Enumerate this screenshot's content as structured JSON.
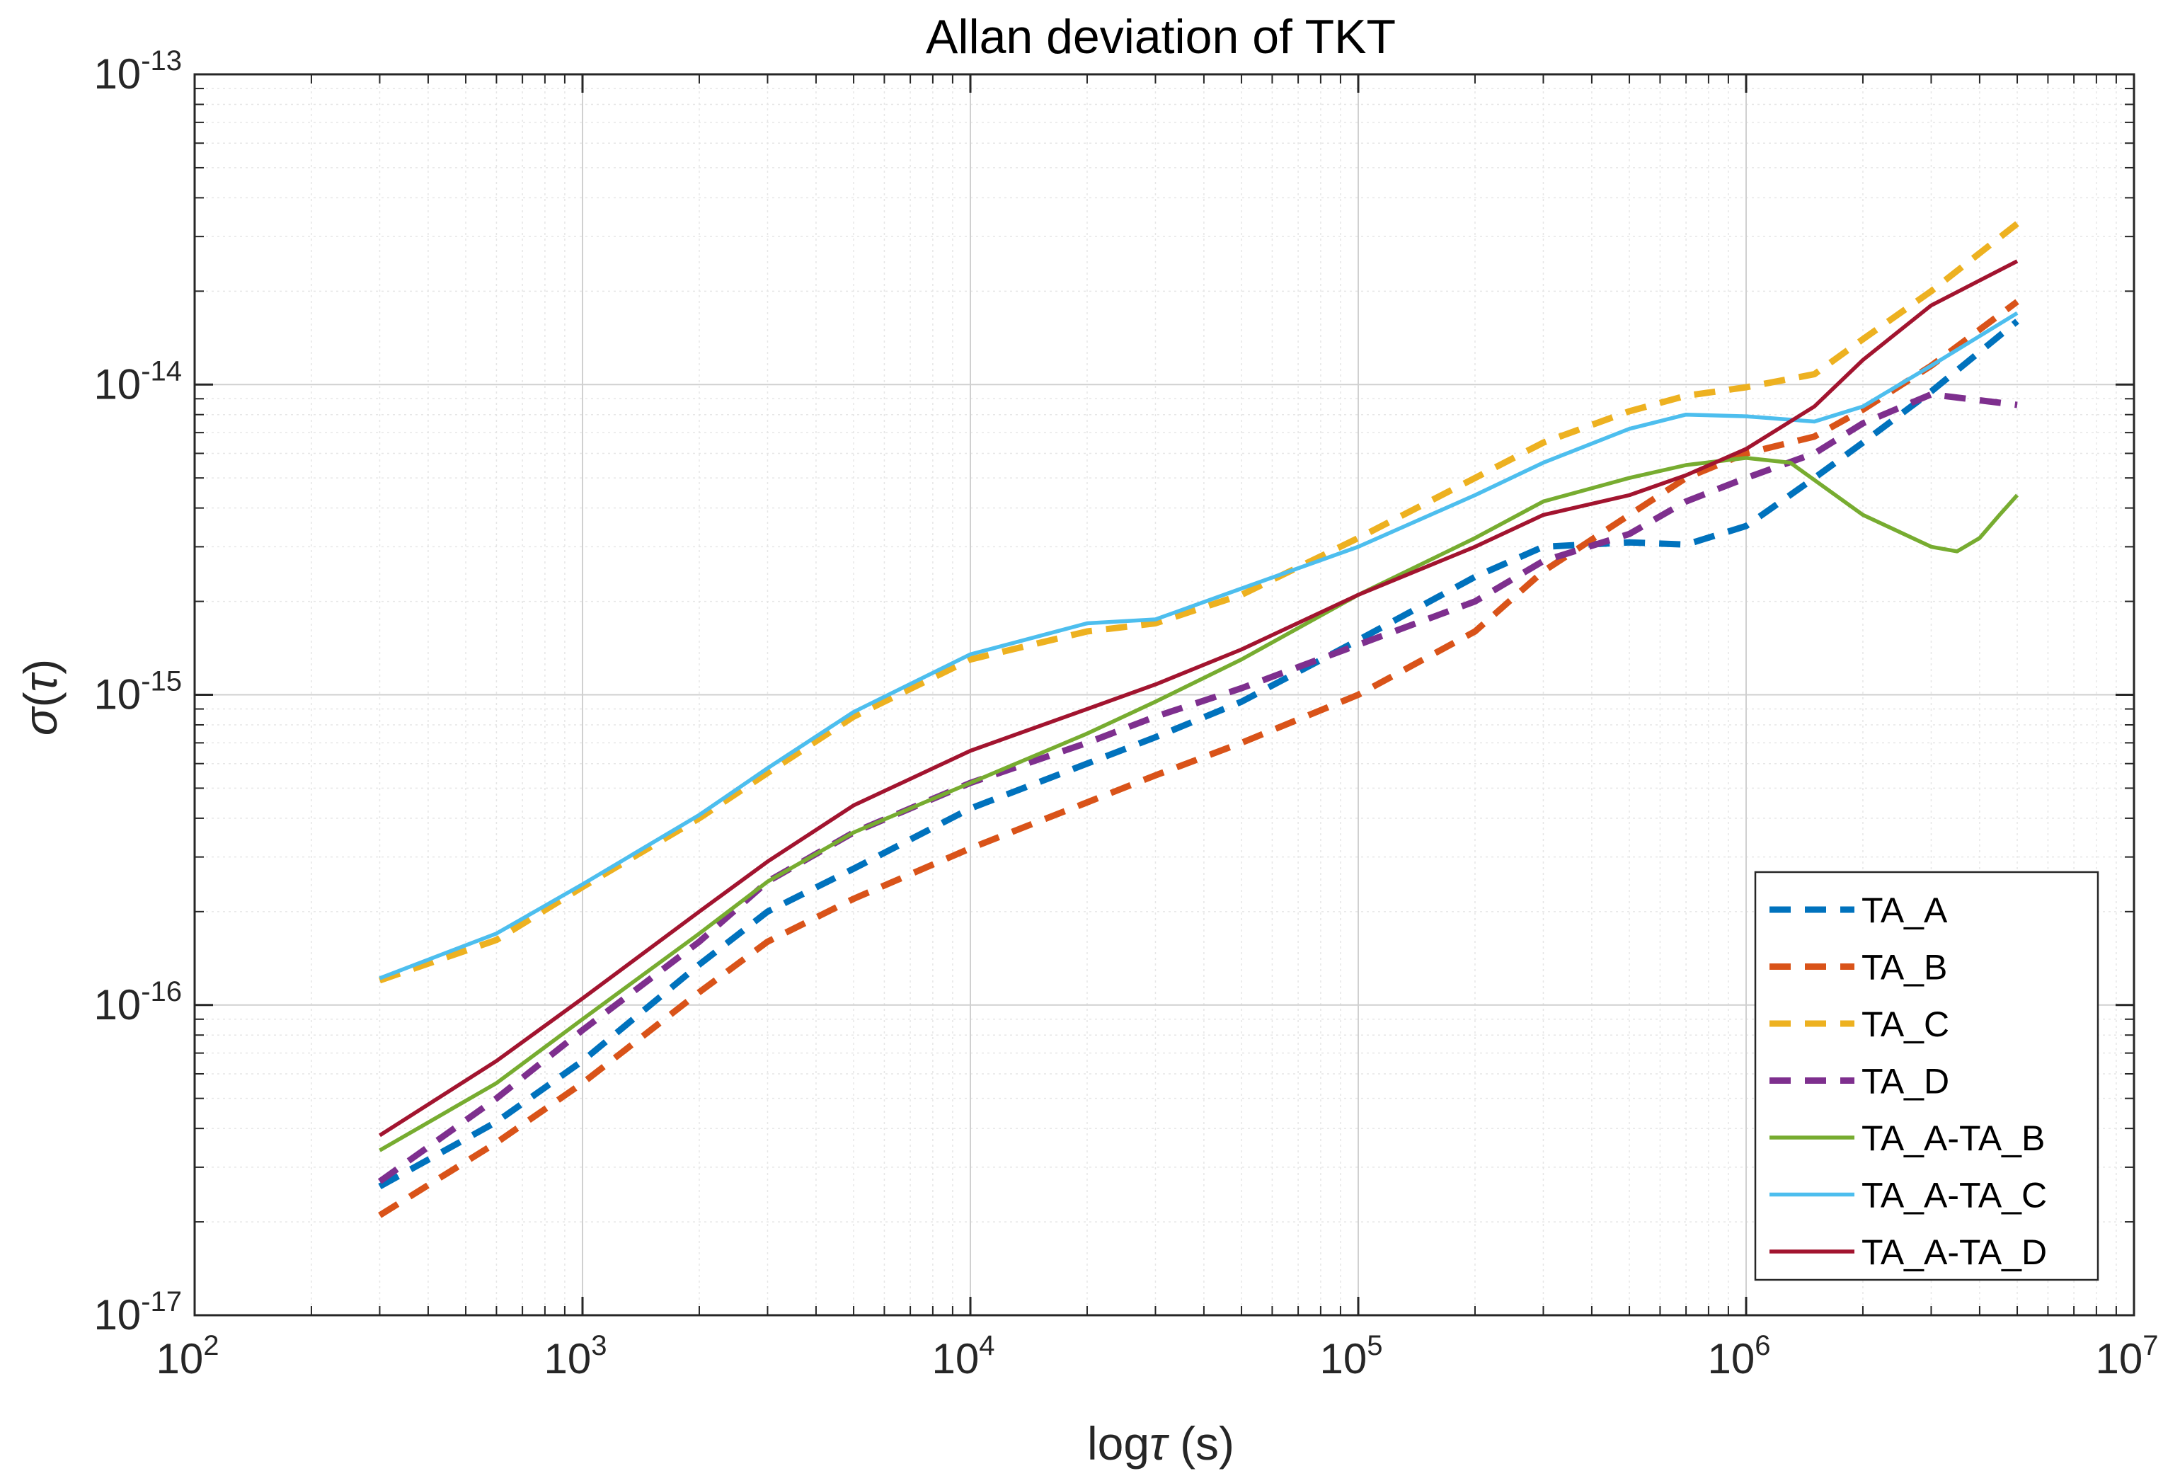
{
  "chart_data": {
    "type": "line",
    "title": "Allan deviation of TKT",
    "xlabel": "logτ (s)",
    "xlabel_parts": {
      "prefix": "log",
      "symbol": "τ",
      "suffix": " (s)"
    },
    "ylabel": "σ(τ)",
    "ylabel_parts": {
      "symbol": "σ",
      "open": "(",
      "arg": "τ",
      "close": ")"
    },
    "xscale": "log",
    "yscale": "log",
    "xlim": [
      100,
      10000000
    ],
    "ylim": [
      1e-17,
      1e-13
    ],
    "x_ticks": [
      {
        "base": "10",
        "exp": "2"
      },
      {
        "base": "10",
        "exp": "3"
      },
      {
        "base": "10",
        "exp": "4"
      },
      {
        "base": "10",
        "exp": "5"
      },
      {
        "base": "10",
        "exp": "6"
      },
      {
        "base": "10",
        "exp": "7"
      }
    ],
    "y_ticks": [
      {
        "base": "10",
        "exp": "-17"
      },
      {
        "base": "10",
        "exp": "-16"
      },
      {
        "base": "10",
        "exp": "-15"
      },
      {
        "base": "10",
        "exp": "-14"
      },
      {
        "base": "10",
        "exp": "-13"
      }
    ],
    "grid": true,
    "minor_grid": true,
    "legend_position": "bottom-right",
    "series": [
      {
        "name": "TA_A",
        "color": "#0072BD",
        "style": "dashed",
        "x": [
          300,
          600,
          1000,
          2000,
          3000,
          5000,
          10000,
          20000,
          30000,
          50000,
          100000,
          200000,
          300000,
          500000,
          700000,
          1000000,
          1500000,
          2000000,
          3000000,
          5000000
        ],
        "y": [
          2.6e-17,
          4.2e-17,
          6.6e-17,
          1.35e-16,
          2e-16,
          2.75e-16,
          4.3e-16,
          6e-16,
          7.3e-16,
          9.5e-16,
          1.5e-15,
          2.4e-15,
          3e-15,
          3.1e-15,
          3.05e-15,
          3.5e-15,
          5e-15,
          6.5e-15,
          9.5e-15,
          1.6e-14
        ]
      },
      {
        "name": "TA_B",
        "color": "#D95319",
        "style": "dashed",
        "x": [
          300,
          600,
          1000,
          2000,
          3000,
          5000,
          10000,
          20000,
          30000,
          50000,
          100000,
          200000,
          300000,
          500000,
          700000,
          1000000,
          1500000,
          2000000,
          3000000,
          5000000
        ],
        "y": [
          2.1e-17,
          3.6e-17,
          5.6e-17,
          1.1e-16,
          1.6e-16,
          2.2e-16,
          3.2e-16,
          4.5e-16,
          5.5e-16,
          7e-16,
          1e-15,
          1.6e-15,
          2.5e-15,
          3.8e-15,
          5e-15,
          6e-15,
          6.8e-15,
          8.3e-15,
          1.15e-14,
          1.85e-14
        ]
      },
      {
        "name": "TA_C",
        "color": "#EDB120",
        "style": "dashed",
        "x": [
          300,
          600,
          1000,
          2000,
          3000,
          5000,
          10000,
          20000,
          30000,
          50000,
          100000,
          200000,
          300000,
          500000,
          700000,
          1000000,
          1500000,
          2000000,
          3000000,
          5000000
        ],
        "y": [
          1.2e-16,
          1.62e-16,
          2.4e-16,
          4e-16,
          5.6e-16,
          8.5e-16,
          1.3e-15,
          1.6e-15,
          1.7e-15,
          2.1e-15,
          3.2e-15,
          5e-15,
          6.5e-15,
          8.2e-15,
          9.2e-15,
          9.8e-15,
          1.08e-14,
          1.4e-14,
          2e-14,
          3.3e-14
        ]
      },
      {
        "name": "TA_D",
        "color": "#7E2F8E",
        "style": "dashed",
        "x": [
          300,
          600,
          1000,
          2000,
          3000,
          5000,
          10000,
          20000,
          30000,
          50000,
          100000,
          200000,
          300000,
          500000,
          700000,
          1000000,
          1500000,
          2000000,
          3000000,
          5000000
        ],
        "y": [
          2.7e-17,
          5e-17,
          8.3e-17,
          1.6e-16,
          2.5e-16,
          3.6e-16,
          5.2e-16,
          7e-16,
          8.5e-16,
          1.05e-15,
          1.45e-15,
          2e-15,
          2.7e-15,
          3.3e-15,
          4.2e-15,
          5e-15,
          6e-15,
          7.5e-15,
          9.3e-15,
          8.6e-15
        ]
      },
      {
        "name": "TA_A-TA_B",
        "color": "#77AC30",
        "style": "solid",
        "x": [
          300,
          600,
          1000,
          2000,
          3000,
          5000,
          10000,
          20000,
          30000,
          50000,
          100000,
          200000,
          300000,
          500000,
          700000,
          1000000,
          1300000,
          2000000,
          3000000,
          3500000,
          4000000,
          4500000,
          5000000
        ],
        "y": [
          3.4e-17,
          5.6e-17,
          9e-17,
          1.7e-16,
          2.5e-16,
          3.6e-16,
          5.2e-16,
          7.5e-16,
          9.5e-16,
          1.3e-15,
          2.1e-15,
          3.2e-15,
          4.2e-15,
          5e-15,
          5.5e-15,
          5.8e-15,
          5.6e-15,
          3.8e-15,
          3e-15,
          2.9e-15,
          3.2e-15,
          3.8e-15,
          4.4e-15
        ]
      },
      {
        "name": "TA_A-TA_C",
        "color": "#4DBEEE",
        "style": "solid",
        "x": [
          300,
          600,
          1000,
          2000,
          3000,
          5000,
          10000,
          20000,
          30000,
          50000,
          100000,
          200000,
          300000,
          500000,
          700000,
          1000000,
          1500000,
          2000000,
          3000000,
          5000000
        ],
        "y": [
          1.22e-16,
          1.7e-16,
          2.45e-16,
          4.1e-16,
          5.8e-16,
          8.8e-16,
          1.35e-15,
          1.7e-15,
          1.75e-15,
          2.2e-15,
          3e-15,
          4.4e-15,
          5.6e-15,
          7.2e-15,
          8e-15,
          7.9e-15,
          7.6e-15,
          8.5e-15,
          1.15e-14,
          1.7e-14
        ]
      },
      {
        "name": "TA_A-TA_D",
        "color": "#A2142F",
        "style": "solid",
        "x": [
          300,
          600,
          1000,
          2000,
          3000,
          5000,
          10000,
          20000,
          30000,
          50000,
          100000,
          200000,
          300000,
          500000,
          700000,
          1000000,
          1500000,
          2000000,
          3000000,
          5000000
        ],
        "y": [
          3.8e-17,
          6.6e-17,
          1.05e-16,
          2e-16,
          2.9e-16,
          4.4e-16,
          6.6e-16,
          9e-16,
          1.08e-15,
          1.4e-15,
          2.1e-15,
          3e-15,
          3.8e-15,
          4.4e-15,
          5.1e-15,
          6.2e-15,
          8.5e-15,
          1.2e-14,
          1.8e-14,
          2.5e-14
        ]
      }
    ]
  }
}
